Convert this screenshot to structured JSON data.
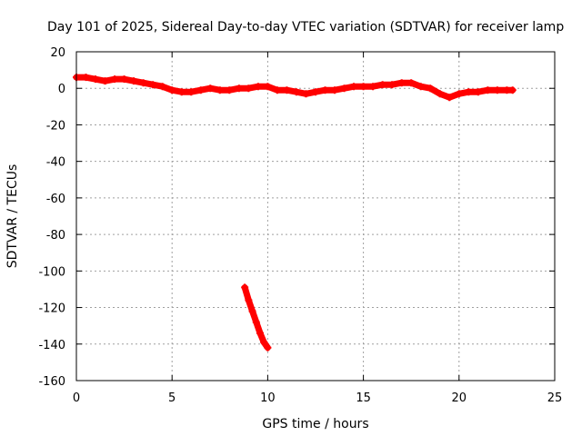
{
  "chart_data": {
    "type": "scatter",
    "title": "Day 101 of 2025, Sidereal Day-to-day VTEC variation (SDTVAR) for receiver lamp",
    "xlabel": "GPS time / hours",
    "ylabel": "SDTVAR / TECUs",
    "xlim": [
      0,
      25
    ],
    "ylim": [
      -160,
      20
    ],
    "xticks": [
      0,
      5,
      10,
      15,
      20,
      25
    ],
    "yticks": [
      20,
      0,
      -20,
      -40,
      -60,
      -80,
      -100,
      -120,
      -140,
      -160
    ],
    "grid": true,
    "series_color": "#ff0000",
    "series": [
      {
        "name": "main",
        "x": [
          0,
          0.5,
          1,
          1.5,
          2,
          2.5,
          3,
          3.5,
          4,
          4.5,
          5,
          5.5,
          6,
          6.5,
          7,
          7.5,
          8,
          8.5,
          9,
          9.5,
          10,
          10.5,
          11,
          11.5,
          12,
          12.5,
          13,
          13.5,
          14,
          14.5,
          15,
          15.5,
          16,
          16.5,
          17,
          17.5,
          18,
          18.5,
          19,
          19.5,
          20,
          20.5,
          21,
          21.5,
          22,
          22.5,
          22.8
        ],
        "y": [
          6,
          6,
          5,
          4,
          5,
          5,
          4,
          3,
          2,
          1,
          -1,
          -2,
          -2,
          -1,
          0,
          -1,
          -1,
          0,
          0,
          1,
          1,
          -1,
          -1,
          -2,
          -3,
          -2,
          -1,
          -1,
          0,
          1,
          1,
          1,
          2,
          2,
          3,
          3,
          1,
          0,
          -3,
          -5,
          -3,
          -2,
          -2,
          -1,
          -1,
          -1,
          -1
        ]
      },
      {
        "name": "outlier",
        "x": [
          8.8,
          9.0,
          9.2,
          9.4,
          9.6,
          9.8,
          10.0
        ],
        "y": [
          -109,
          -116,
          -122,
          -128,
          -134,
          -139,
          -142
        ]
      }
    ]
  }
}
